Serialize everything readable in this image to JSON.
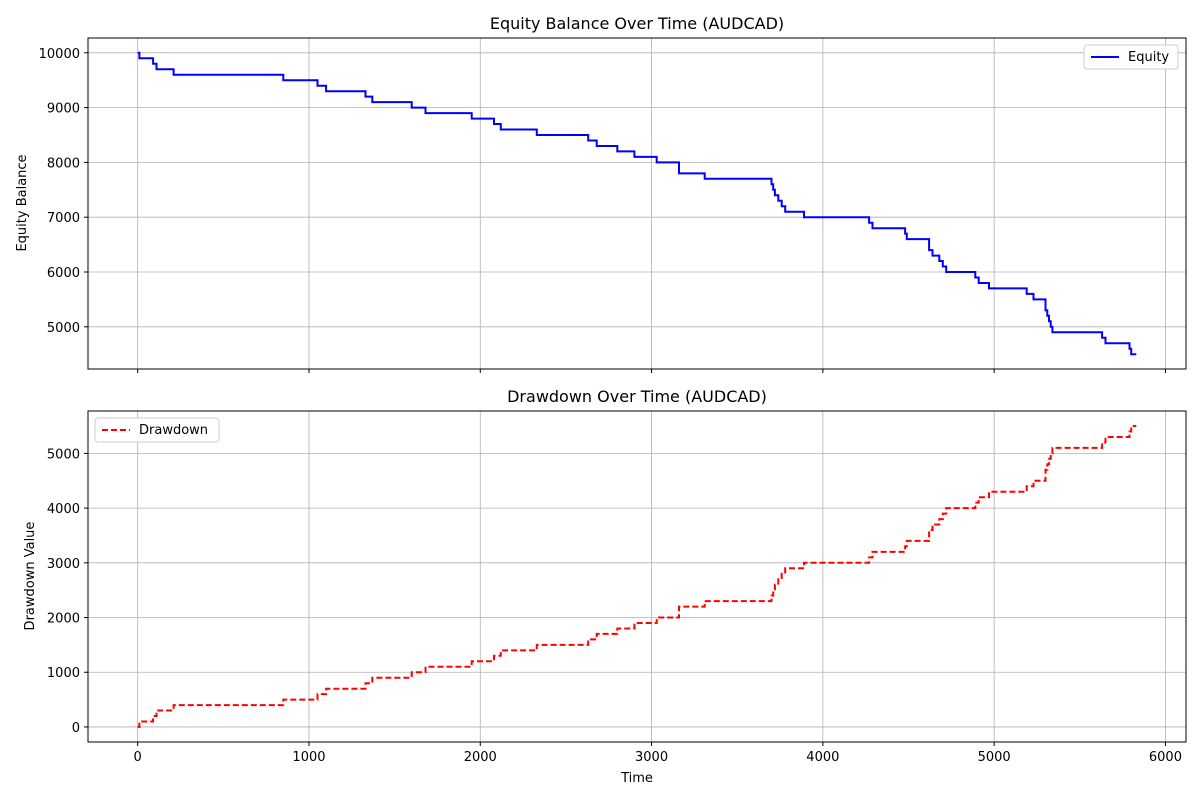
{
  "chart_data": [
    {
      "type": "line",
      "title": "Equity Balance Over Time (AUDCAD)",
      "xlabel": "",
      "ylabel": "Equity Balance",
      "xlim": [
        -290,
        6120
      ],
      "ylim": [
        4230,
        10270
      ],
      "xticks": [
        0,
        1000,
        2000,
        3000,
        4000,
        5000,
        6000
      ],
      "xtick_labels": [],
      "yticks": [
        5000,
        6000,
        7000,
        8000,
        9000,
        10000
      ],
      "ytick_labels": [
        "5000",
        "6000",
        "7000",
        "8000",
        "9000",
        "10000"
      ],
      "grid": true,
      "legend_position": "top-right",
      "series": [
        {
          "name": "Equity",
          "color": "#0000ff",
          "style": "solid",
          "step": "post",
          "x": [
            0,
            10,
            90,
            110,
            210,
            850,
            1050,
            1100,
            1330,
            1370,
            1600,
            1680,
            1950,
            2080,
            2120,
            2330,
            2630,
            2680,
            2800,
            2900,
            3030,
            3160,
            3310,
            3700,
            3710,
            3720,
            3740,
            3760,
            3780,
            3890,
            4270,
            4290,
            4480,
            4490,
            4620,
            4640,
            4680,
            4700,
            4720,
            4890,
            4910,
            4970,
            5190,
            5230,
            5300,
            5310,
            5320,
            5330,
            5340,
            5630,
            5650,
            5790,
            5800,
            5830
          ],
          "y": [
            10000,
            9900,
            9800,
            9700,
            9600,
            9500,
            9400,
            9300,
            9200,
            9100,
            9000,
            8900,
            8800,
            8700,
            8600,
            8500,
            8400,
            8300,
            8200,
            8100,
            8000,
            7800,
            7700,
            7600,
            7500,
            7400,
            7300,
            7200,
            7100,
            7000,
            6900,
            6800,
            6700,
            6600,
            6400,
            6300,
            6200,
            6100,
            6000,
            5900,
            5800,
            5700,
            5600,
            5500,
            5300,
            5200,
            5100,
            5000,
            4900,
            4800,
            4700,
            4600,
            4500,
            4500
          ]
        }
      ]
    },
    {
      "type": "line",
      "title": "Drawdown Over Time (AUDCAD)",
      "xlabel": "Time",
      "ylabel": "Drawdown Value",
      "xlim": [
        -290,
        6120
      ],
      "ylim": [
        -275,
        5775
      ],
      "xticks": [
        0,
        1000,
        2000,
        3000,
        4000,
        5000,
        6000
      ],
      "xtick_labels": [
        "0",
        "1000",
        "2000",
        "3000",
        "4000",
        "5000",
        "6000"
      ],
      "yticks": [
        0,
        1000,
        2000,
        3000,
        4000,
        5000
      ],
      "ytick_labels": [
        "0",
        "1000",
        "2000",
        "3000",
        "4000",
        "5000"
      ],
      "grid": true,
      "legend_position": "top-left",
      "series": [
        {
          "name": "Drawdown",
          "color": "#ff0000",
          "style": "dashed",
          "step": "post",
          "x": [
            0,
            10,
            90,
            110,
            210,
            850,
            1050,
            1100,
            1330,
            1370,
            1600,
            1680,
            1950,
            2080,
            2120,
            2330,
            2630,
            2680,
            2800,
            2900,
            3030,
            3160,
            3310,
            3700,
            3710,
            3720,
            3740,
            3760,
            3780,
            3890,
            4270,
            4290,
            4480,
            4490,
            4620,
            4640,
            4680,
            4700,
            4720,
            4890,
            4910,
            4970,
            5190,
            5230,
            5300,
            5310,
            5320,
            5330,
            5340,
            5630,
            5650,
            5790,
            5800,
            5830
          ],
          "y": [
            0,
            100,
            200,
            300,
            400,
            500,
            600,
            700,
            800,
            900,
            1000,
            1100,
            1200,
            1300,
            1400,
            1500,
            1600,
            1700,
            1800,
            1900,
            2000,
            2200,
            2300,
            2400,
            2500,
            2600,
            2700,
            2800,
            2900,
            3000,
            3100,
            3200,
            3300,
            3400,
            3600,
            3700,
            3800,
            3900,
            4000,
            4100,
            4200,
            4300,
            4400,
            4500,
            4700,
            4800,
            4900,
            5000,
            5100,
            5200,
            5300,
            5400,
            5500,
            5500
          ]
        }
      ]
    }
  ]
}
